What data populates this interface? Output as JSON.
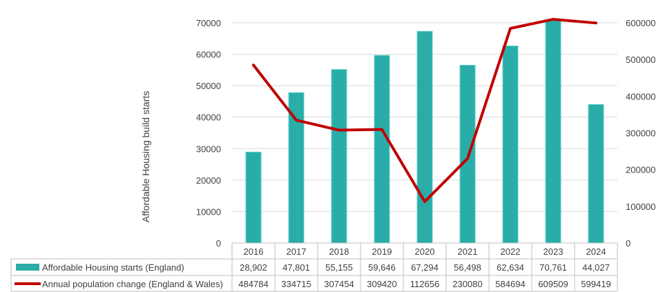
{
  "chart_data": {
    "type": "bar",
    "categories": [
      "2016",
      "2017",
      "2018",
      "2019",
      "2020",
      "2021",
      "2022",
      "2023",
      "2024"
    ],
    "series": [
      {
        "name": "Affordable Housing starts (England)",
        "type": "bar",
        "axis": "left",
        "color": "#2AADA8",
        "values": [
          28902,
          47801,
          55155,
          59646,
          67294,
          56498,
          62634,
          70761,
          44027
        ],
        "table_values": [
          "28,902",
          "47,801",
          "55,155",
          "59,646",
          "67,294",
          "56,498",
          "62,634",
          "70,761",
          "44,027"
        ]
      },
      {
        "name": "Annual population change (England & Wales)",
        "type": "line",
        "axis": "right",
        "color": "#C00000",
        "values": [
          484784,
          334715,
          307454,
          309420,
          112656,
          230080,
          584694,
          609509,
          599419
        ],
        "table_values": [
          "484784",
          "334715",
          "307454",
          "309420",
          "112656",
          "230080",
          "584694",
          "609509",
          "599419"
        ]
      }
    ],
    "ylabel": "Affordable Housing build starts",
    "ylim": [
      0,
      70000
    ],
    "y_ticks": [
      "0",
      "10000",
      "20000",
      "30000",
      "40000",
      "50000",
      "60000",
      "70000"
    ],
    "y2lim": [
      0,
      600000
    ],
    "y2_ticks": [
      "0",
      "100000",
      "200000",
      "300000",
      "400000",
      "500000",
      "600000"
    ],
    "grid": true,
    "legend": "data-table-below"
  }
}
